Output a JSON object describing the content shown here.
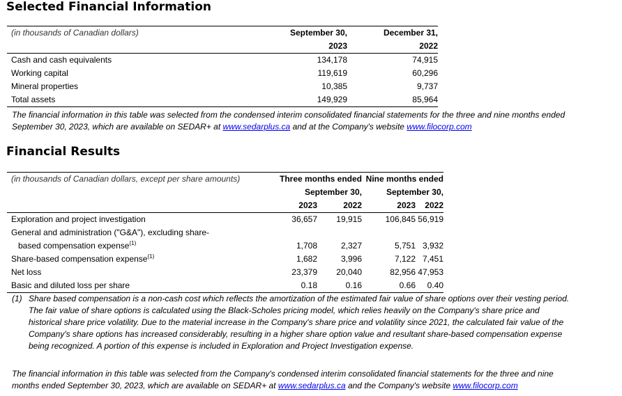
{
  "section1": {
    "title": "Selected Financial Information",
    "caption": "(in thousands of Canadian dollars)",
    "col_headers": [
      [
        "September 30,",
        "2023"
      ],
      [
        "December 31,",
        "2022"
      ]
    ],
    "rows": [
      {
        "label": "Cash and cash equivalents",
        "values": [
          "134,178",
          "74,915"
        ]
      },
      {
        "label": "Working capital",
        "values": [
          "119,619",
          "60,296"
        ]
      },
      {
        "label": "Mineral properties",
        "values": [
          "10,385",
          "9,737"
        ]
      },
      {
        "label": "Total assets",
        "values": [
          "149,929",
          "85,964"
        ]
      }
    ],
    "note_a": "The financial information in this table was selected from the condensed interim consolidated financial statements for the three and nine months ended",
    "note_b": "September 30, 2023, which are available on SEDAR+ at ",
    "link1": "www.sedarplus.ca",
    "note_c": " and at the Company's website ",
    "link2": "www.filocorp.com"
  },
  "section2": {
    "title": "Financial Results",
    "caption": "(in thousands of Canadian dollars, except per share amounts)",
    "group_headers": [
      [
        "Three months ended",
        "September 30,"
      ],
      [
        "Nine months ended",
        "September 30,"
      ]
    ],
    "years": [
      "2023",
      "2022",
      "2023",
      "2022"
    ],
    "rows": [
      {
        "label": "Exploration and project investigation",
        "values": [
          "36,657",
          "19,915",
          "106,845",
          "56,919"
        ]
      },
      {
        "label": "General and administration (\"G&A\"), excluding share-",
        "label2": "based compensation expense",
        "sup": "(1)",
        "values": [
          "1,708",
          "2,327",
          "5,751",
          "3,932"
        ]
      },
      {
        "label": "Share-based compensation expense",
        "sup": "(1)",
        "values": [
          "1,682",
          "3,996",
          "7,122",
          "7,451"
        ]
      },
      {
        "label": "Net loss",
        "values": [
          "23,379",
          "20,040",
          "82,956",
          "47,953"
        ]
      },
      {
        "label": "Basic and diluted loss per share",
        "values": [
          "0.18",
          "0.16",
          "0.66",
          "0.40"
        ]
      }
    ],
    "footnote_num": "(1)",
    "footnote": "Share based compensation is a non-cash cost which reflects the amortization of the estimated fair value of share options over their vesting period. The fair value of share options is calculated using the Black-Scholes pricing model, which relies heavily on the Company's share price and historical share price volatility. Due to the material increase in the Company's share price and volatility since 2021, the calculated fair value of the Company's share options has increased considerably, resulting in a higher share option value and resultant share-based compensation expense being recognized. A portion of this expense is included in Exploration and Project Investigation expense.",
    "note_a": "The financial information in this table was selected from the Company's condensed interim consolidated financial statements for the three and nine",
    "note_b": "months ended September 30, 2023, which are available on SEDAR+ at ",
    "link1": "www.sedarplus.ca",
    "note_c": " and the Company's website ",
    "link2": "www.filocorp.com"
  }
}
